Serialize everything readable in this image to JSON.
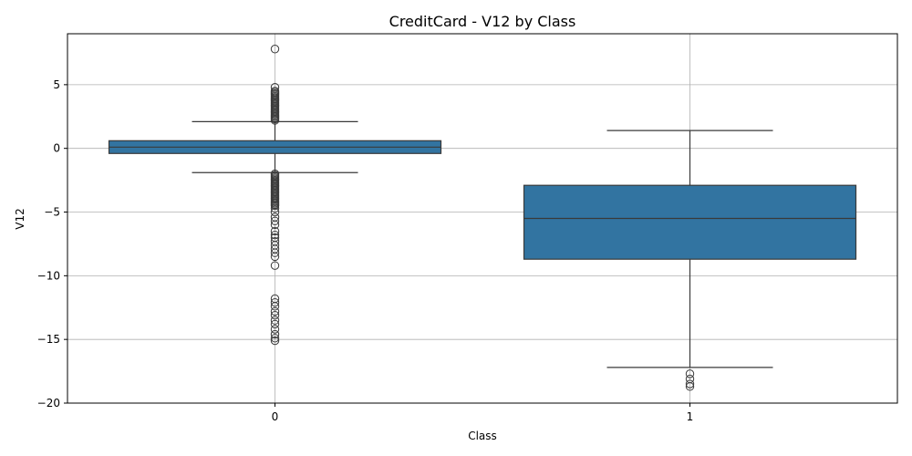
{
  "chart_data": {
    "type": "box",
    "title": "CreditCard - V12 by Class",
    "xlabel": "Class",
    "ylabel": "V12",
    "categories": [
      "0",
      "1"
    ],
    "ylim": [
      -20,
      9
    ],
    "yticks": [
      -20,
      -15,
      -10,
      -5,
      0,
      5
    ],
    "grid": true,
    "box_color": "#3274a1",
    "line_color": "#3a3a3a",
    "boxes": [
      {
        "category": "0",
        "whisker_low": -1.9,
        "q1": -0.4,
        "median": 0.1,
        "q3": 0.6,
        "whisker_high": 2.1,
        "outliers": [
          7.8,
          4.8,
          4.5,
          4.4,
          4.3,
          4.2,
          4.1,
          4.0,
          3.9,
          3.8,
          3.7,
          3.6,
          3.5,
          3.4,
          3.3,
          3.2,
          3.1,
          3.0,
          2.9,
          2.8,
          2.7,
          2.6,
          2.5,
          2.4,
          2.3,
          2.2,
          -2.0,
          -2.1,
          -2.2,
          -2.3,
          -2.4,
          -2.5,
          -2.6,
          -2.7,
          -2.8,
          -2.9,
          -3.0,
          -3.1,
          -3.2,
          -3.3,
          -3.4,
          -3.5,
          -3.6,
          -3.7,
          -3.8,
          -3.9,
          -4.0,
          -4.1,
          -4.2,
          -4.3,
          -4.4,
          -4.5,
          -4.7,
          -5.0,
          -5.4,
          -5.7,
          -6.0,
          -6.5,
          -6.8,
          -7.0,
          -7.3,
          -7.6,
          -7.9,
          -8.2,
          -8.5,
          -9.2,
          -11.8,
          -12.1,
          -12.4,
          -12.8,
          -13.1,
          -13.5,
          -13.8,
          -14.2,
          -14.6,
          -14.9,
          -15.1
        ]
      },
      {
        "category": "1",
        "whisker_low": -17.2,
        "q1": -8.7,
        "median": -5.5,
        "q3": -2.9,
        "whisker_high": 1.4,
        "outliers": [
          -17.7,
          -18.1,
          -18.5,
          -18.7
        ]
      }
    ]
  }
}
